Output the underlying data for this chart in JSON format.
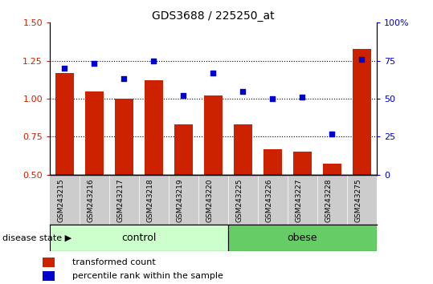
{
  "title": "GDS3688 / 225250_at",
  "samples": [
    "GSM243215",
    "GSM243216",
    "GSM243217",
    "GSM243218",
    "GSM243219",
    "GSM243220",
    "GSM243225",
    "GSM243226",
    "GSM243227",
    "GSM243228",
    "GSM243275"
  ],
  "transformed_count": [
    1.17,
    1.05,
    1.0,
    1.12,
    0.83,
    1.02,
    0.83,
    0.67,
    0.65,
    0.57,
    1.33
  ],
  "percentile_rank": [
    70,
    73,
    63,
    75,
    52,
    67,
    55,
    50,
    51,
    27,
    76
  ],
  "bar_color": "#cc2200",
  "dot_color": "#0000cc",
  "ylim_left": [
    0.5,
    1.5
  ],
  "ylim_right": [
    0,
    100
  ],
  "yticks_left": [
    0.5,
    0.75,
    1.0,
    1.25,
    1.5
  ],
  "yticks_right": [
    0,
    25,
    50,
    75,
    100
  ],
  "control_count": 6,
  "obese_count": 5,
  "control_label": "control",
  "obese_label": "obese",
  "disease_state_label": "disease state",
  "legend_bar_label": "transformed count",
  "legend_dot_label": "percentile rank within the sample",
  "control_color": "#ccffcc",
  "obese_color": "#66cc66",
  "tick_label_area_color": "#cccccc",
  "ytick_left_color": "#cc2200",
  "ytick_right_color": "#0000cc",
  "grid_color": "black"
}
